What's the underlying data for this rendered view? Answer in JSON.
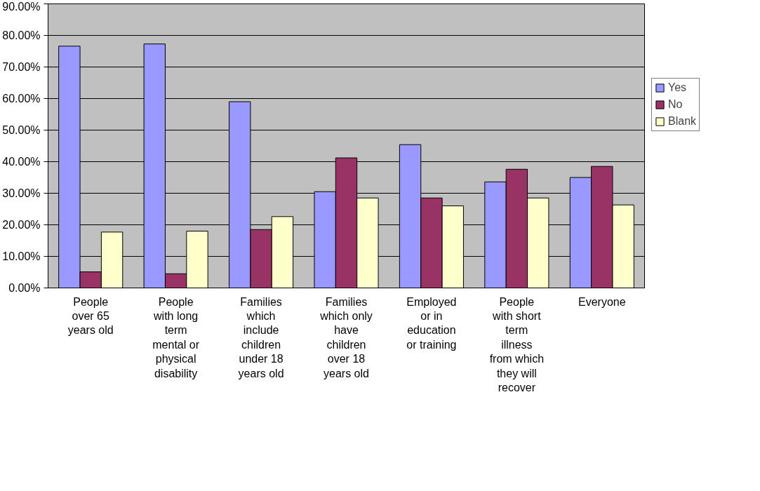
{
  "chart_data": {
    "type": "bar",
    "categories": [
      "People\nover 65\nyears old",
      "People\nwith long\nterm\nmental or\nphysical\ndisability",
      "Families\nwhich\ninclude\nchildren\nunder 18\nyears old",
      "Families\nwhich only\nhave\nchildren\nover 18\nyears old",
      "Employed\nor in\neducation\nor training",
      "People\nwith short\nterm\nillness\nfrom which\nthey will\nrecover",
      "Everyone"
    ],
    "series": [
      {
        "name": "Yes",
        "color": "#9999ff",
        "values": [
          76.6,
          77.3,
          59.0,
          30.5,
          45.4,
          33.6,
          35.0
        ]
      },
      {
        "name": "No",
        "color": "#993366",
        "values": [
          5.1,
          4.5,
          18.5,
          41.2,
          28.5,
          37.6,
          38.5
        ]
      },
      {
        "name": "Blank",
        "color": "#ffffcc",
        "values": [
          17.7,
          18.0,
          22.6,
          28.5,
          26.0,
          28.5,
          26.3
        ]
      }
    ],
    "ylim": [
      0,
      90
    ],
    "yticks": [
      {
        "value": 0,
        "label": "0.00%"
      },
      {
        "value": 10,
        "label": "10.00%"
      },
      {
        "value": 20,
        "label": "20.00%"
      },
      {
        "value": 30,
        "label": "30.00%"
      },
      {
        "value": 40,
        "label": "40.00%"
      },
      {
        "value": 50,
        "label": "50.00%"
      },
      {
        "value": 60,
        "label": "60.00%"
      },
      {
        "value": 70,
        "label": "70.00%"
      },
      {
        "value": 80,
        "label": "80.00%"
      },
      {
        "value": 90,
        "label": "90.00%"
      }
    ],
    "grid": "y",
    "legend": "right"
  }
}
